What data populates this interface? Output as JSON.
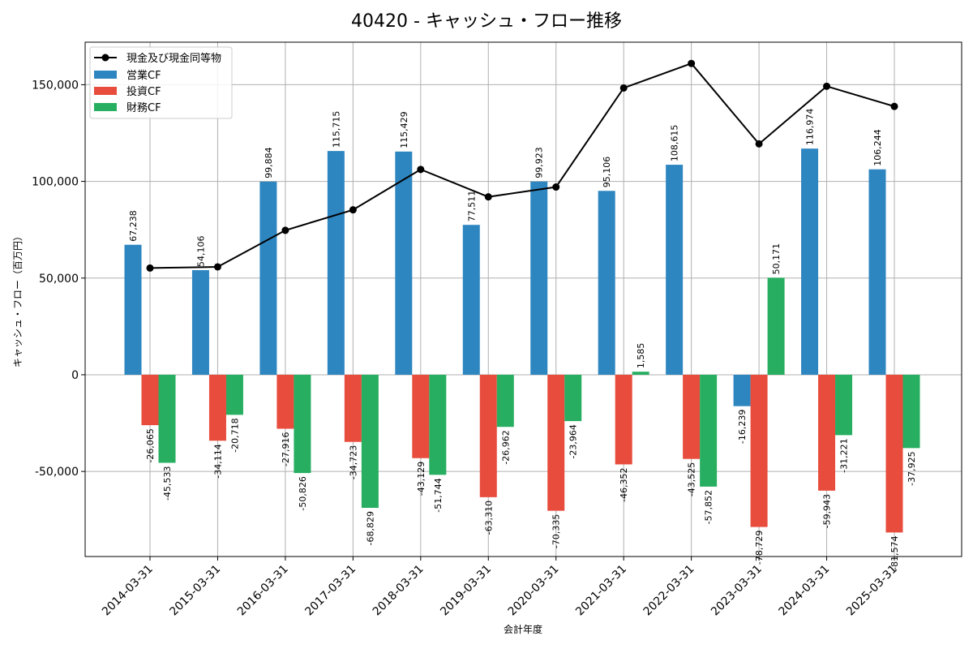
{
  "chart_data": {
    "type": "bar",
    "title": "40420 - キャッシュ・フロー推移",
    "xlabel": "会計年度",
    "ylabel": "キャッシュ・フロー（百万円）",
    "ylim": [
      -94000,
      172000
    ],
    "yticks": [
      -50000,
      0,
      50000,
      100000,
      150000
    ],
    "ytick_labels": [
      "-50,000",
      "0",
      "50,000",
      "100,000",
      "150,000"
    ],
    "grid": true,
    "legend_position": "top-left",
    "categories": [
      "2014-03-31",
      "2015-03-31",
      "2016-03-31",
      "2017-03-31",
      "2018-03-31",
      "2019-03-31",
      "2020-03-31",
      "2021-03-31",
      "2022-03-31",
      "2023-03-31",
      "2024-03-31",
      "2025-03-31"
    ],
    "series": [
      {
        "name": "営業CF",
        "kind": "bar",
        "color": "#2e86c1",
        "values": [
          67238,
          54106,
          99884,
          115715,
          115429,
          77511,
          99923,
          95106,
          108615,
          -16239,
          116974,
          106244
        ],
        "labels": [
          "67,238",
          "54,106",
          "99,884",
          "115,715",
          "115,429",
          "77,511",
          "99,923",
          "95,106",
          "108,615",
          "-16,239",
          "116,974",
          "106,244"
        ]
      },
      {
        "name": "投資CF",
        "kind": "bar",
        "color": "#e74c3c",
        "values": [
          -26065,
          -34114,
          -27916,
          -34723,
          -43129,
          -63310,
          -70335,
          -46352,
          -43525,
          -78729,
          -59943,
          -81574
        ],
        "labels": [
          "-26,065",
          "-34,114",
          "-27,916",
          "-34,723",
          "-43,129",
          "-63,310",
          "-70,335",
          "-46,352",
          "-43,525",
          "-78,729",
          "-59,943",
          "-81,574"
        ]
      },
      {
        "name": "財務CF",
        "kind": "bar",
        "color": "#27ae60",
        "values": [
          -45533,
          -20718,
          -50826,
          -68829,
          -51744,
          -26962,
          -23964,
          1585,
          -57852,
          50171,
          -31221,
          -37925
        ],
        "labels": [
          "-45,533",
          "-20,718",
          "-50,826",
          "-68,829",
          "-51,744",
          "-26,962",
          "-23,964",
          "1,585",
          "-57,852",
          "50,171",
          "-31,221",
          "-37,925"
        ]
      },
      {
        "name": "現金及び現金同等物",
        "kind": "line",
        "color": "#000000",
        "values": [
          55200,
          55800,
          74700,
          85300,
          106200,
          92000,
          97100,
          148300,
          161000,
          119400,
          149200,
          138800
        ]
      }
    ]
  }
}
